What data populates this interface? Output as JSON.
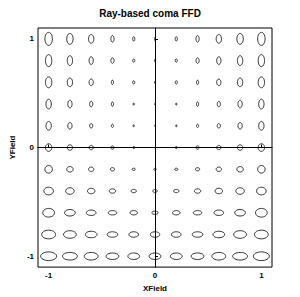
{
  "chart_data": {
    "type": "ellipse_grid",
    "title": "Ray-based coma FFD",
    "xlabel": "XField",
    "ylabel": "YField",
    "xlim": [
      -1.1,
      1.1
    ],
    "ylim": [
      -1.1,
      1.1
    ],
    "xticks": [
      -1,
      0,
      1
    ],
    "yticks": [
      -1,
      0,
      1
    ],
    "grid": false,
    "color": "#000000",
    "marker": "ellipse",
    "x": [
      -1,
      -0.8,
      -0.6,
      -0.4,
      -0.2,
      0,
      0.2,
      0.4,
      0.6,
      0.8,
      1
    ],
    "y": [
      1,
      0.8,
      0.6,
      0.4,
      0.2,
      0,
      -0.2,
      -0.4,
      -0.6,
      -0.8,
      -1
    ],
    "widths": [
      [
        0.07,
        0.06,
        0.05,
        0.03,
        0.02,
        0.01,
        0.02,
        0.03,
        0.05,
        0.06,
        0.07
      ],
      [
        0.06,
        0.05,
        0.04,
        0.03,
        0.02,
        0.01,
        0.02,
        0.03,
        0.04,
        0.05,
        0.06
      ],
      [
        0.06,
        0.05,
        0.04,
        0.02,
        0.02,
        0.01,
        0.02,
        0.02,
        0.04,
        0.05,
        0.06
      ],
      [
        0.05,
        0.04,
        0.03,
        0.02,
        0.01,
        0.01,
        0.01,
        0.02,
        0.03,
        0.04,
        0.05
      ],
      [
        0.05,
        0.04,
        0.03,
        0.02,
        0.01,
        0.01,
        0.01,
        0.02,
        0.03,
        0.04,
        0.05
      ],
      [
        0.06,
        0.05,
        0.04,
        0.03,
        0.02,
        0.01,
        0.02,
        0.03,
        0.04,
        0.05,
        0.06
      ],
      [
        0.07,
        0.06,
        0.05,
        0.04,
        0.03,
        0.02,
        0.03,
        0.04,
        0.05,
        0.06,
        0.07
      ],
      [
        0.09,
        0.08,
        0.07,
        0.06,
        0.05,
        0.04,
        0.05,
        0.06,
        0.07,
        0.08,
        0.09
      ],
      [
        0.11,
        0.1,
        0.09,
        0.08,
        0.07,
        0.06,
        0.07,
        0.08,
        0.09,
        0.1,
        0.11
      ],
      [
        0.13,
        0.12,
        0.11,
        0.1,
        0.09,
        0.09,
        0.09,
        0.1,
        0.11,
        0.12,
        0.13
      ],
      [
        0.15,
        0.14,
        0.13,
        0.12,
        0.11,
        0.11,
        0.11,
        0.12,
        0.13,
        0.14,
        0.15
      ]
    ],
    "heights": [
      [
        0.12,
        0.1,
        0.08,
        0.06,
        0.04,
        0.03,
        0.04,
        0.06,
        0.08,
        0.1,
        0.12
      ],
      [
        0.11,
        0.09,
        0.07,
        0.05,
        0.03,
        0.02,
        0.03,
        0.05,
        0.07,
        0.09,
        0.11
      ],
      [
        0.1,
        0.08,
        0.06,
        0.04,
        0.03,
        0.02,
        0.03,
        0.04,
        0.06,
        0.08,
        0.1
      ],
      [
        0.09,
        0.07,
        0.05,
        0.04,
        0.02,
        0.01,
        0.02,
        0.04,
        0.05,
        0.07,
        0.09
      ],
      [
        0.08,
        0.06,
        0.04,
        0.03,
        0.02,
        0.01,
        0.02,
        0.03,
        0.04,
        0.06,
        0.08
      ],
      [
        0.07,
        0.05,
        0.04,
        0.03,
        0.02,
        0.01,
        0.02,
        0.03,
        0.04,
        0.05,
        0.07
      ],
      [
        0.07,
        0.05,
        0.04,
        0.03,
        0.02,
        0.02,
        0.02,
        0.03,
        0.04,
        0.05,
        0.07
      ],
      [
        0.07,
        0.06,
        0.05,
        0.04,
        0.03,
        0.03,
        0.03,
        0.04,
        0.05,
        0.06,
        0.07
      ],
      [
        0.08,
        0.06,
        0.05,
        0.04,
        0.04,
        0.03,
        0.04,
        0.04,
        0.05,
        0.06,
        0.08
      ],
      [
        0.08,
        0.07,
        0.06,
        0.05,
        0.05,
        0.05,
        0.05,
        0.05,
        0.06,
        0.07,
        0.08
      ],
      [
        0.08,
        0.07,
        0.07,
        0.06,
        0.06,
        0.06,
        0.06,
        0.06,
        0.07,
        0.07,
        0.08
      ]
    ]
  }
}
